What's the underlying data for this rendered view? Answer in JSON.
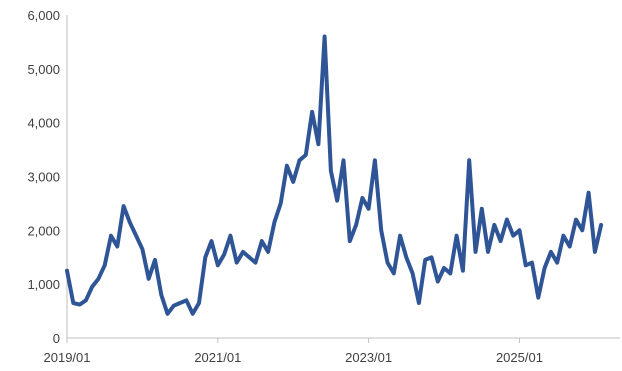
{
  "chart_data": {
    "type": "line",
    "title": "",
    "xlabel": "",
    "ylabel": "",
    "x_range": [
      "2019-01",
      "2026-05"
    ],
    "ylim": [
      0,
      6000
    ],
    "y_ticks": [
      0,
      1000,
      2000,
      3000,
      4000,
      5000,
      6000
    ],
    "y_tick_labels": [
      "0",
      "1,000",
      "2,000",
      "3,000",
      "4,000",
      "5,000",
      "6,000"
    ],
    "x_ticks": [
      "2019-01",
      "2021-01",
      "2023-01",
      "2025-01"
    ],
    "x_tick_labels": [
      "2019/01",
      "2021/01",
      "2023/01",
      "2025/01"
    ],
    "grid": false,
    "legend": "none",
    "colors": {
      "line": "#2f5597",
      "axis": "#bfbfbf",
      "text": "#404040"
    },
    "series": [
      {
        "values": [
          [
            "2019-01",
            1250
          ],
          [
            "2019-02",
            650
          ],
          [
            "2019-03",
            620
          ],
          [
            "2019-04",
            700
          ],
          [
            "2019-05",
            950
          ],
          [
            "2019-06",
            1100
          ],
          [
            "2019-07",
            1350
          ],
          [
            "2019-08",
            1900
          ],
          [
            "2019-09",
            1700
          ],
          [
            "2019-10",
            2450
          ],
          [
            "2019-11",
            2150
          ],
          [
            "2019-12",
            1900
          ],
          [
            "2020-01",
            1650
          ],
          [
            "2020-02",
            1100
          ],
          [
            "2020-03",
            1450
          ],
          [
            "2020-04",
            800
          ],
          [
            "2020-05",
            450
          ],
          [
            "2020-06",
            600
          ],
          [
            "2020-07",
            650
          ],
          [
            "2020-08",
            700
          ],
          [
            "2020-09",
            450
          ],
          [
            "2020-10",
            650
          ],
          [
            "2020-11",
            1500
          ],
          [
            "2020-12",
            1800
          ],
          [
            "2021-01",
            1350
          ],
          [
            "2021-02",
            1550
          ],
          [
            "2021-03",
            1900
          ],
          [
            "2021-04",
            1400
          ],
          [
            "2021-05",
            1600
          ],
          [
            "2021-06",
            1500
          ],
          [
            "2021-07",
            1400
          ],
          [
            "2021-08",
            1800
          ],
          [
            "2021-09",
            1600
          ],
          [
            "2021-10",
            2150
          ],
          [
            "2021-11",
            2500
          ],
          [
            "2021-12",
            3200
          ],
          [
            "2022-01",
            2900
          ],
          [
            "2022-02",
            3300
          ],
          [
            "2022-03",
            3400
          ],
          [
            "2022-04",
            4200
          ],
          [
            "2022-05",
            3600
          ],
          [
            "2022-06",
            5600
          ],
          [
            "2022-07",
            3100
          ],
          [
            "2022-08",
            2550
          ],
          [
            "2022-09",
            3300
          ],
          [
            "2022-10",
            1800
          ],
          [
            "2022-11",
            2100
          ],
          [
            "2022-12",
            2600
          ],
          [
            "2023-01",
            2400
          ],
          [
            "2023-02",
            3300
          ],
          [
            "2023-03",
            2000
          ],
          [
            "2023-04",
            1400
          ],
          [
            "2023-05",
            1200
          ],
          [
            "2023-06",
            1900
          ],
          [
            "2023-07",
            1500
          ],
          [
            "2023-08",
            1200
          ],
          [
            "2023-09",
            650
          ],
          [
            "2023-10",
            1450
          ],
          [
            "2023-11",
            1500
          ],
          [
            "2023-12",
            1050
          ],
          [
            "2024-01",
            1300
          ],
          [
            "2024-02",
            1200
          ],
          [
            "2024-03",
            1900
          ],
          [
            "2024-04",
            1250
          ],
          [
            "2024-05",
            3300
          ],
          [
            "2024-06",
            1600
          ],
          [
            "2024-07",
            2400
          ],
          [
            "2024-08",
            1600
          ],
          [
            "2024-09",
            2100
          ],
          [
            "2024-10",
            1800
          ],
          [
            "2024-11",
            2200
          ],
          [
            "2024-12",
            1900
          ],
          [
            "2025-01",
            2000
          ],
          [
            "2025-02",
            1350
          ],
          [
            "2025-03",
            1400
          ],
          [
            "2025-04",
            750
          ],
          [
            "2025-05",
            1300
          ],
          [
            "2025-06",
            1600
          ],
          [
            "2025-07",
            1400
          ],
          [
            "2025-08",
            1900
          ],
          [
            "2025-09",
            1700
          ],
          [
            "2025-10",
            2200
          ],
          [
            "2025-11",
            2000
          ],
          [
            "2025-12",
            2700
          ],
          [
            "2026-01",
            1600
          ],
          [
            "2026-02",
            2100
          ]
        ]
      }
    ]
  }
}
